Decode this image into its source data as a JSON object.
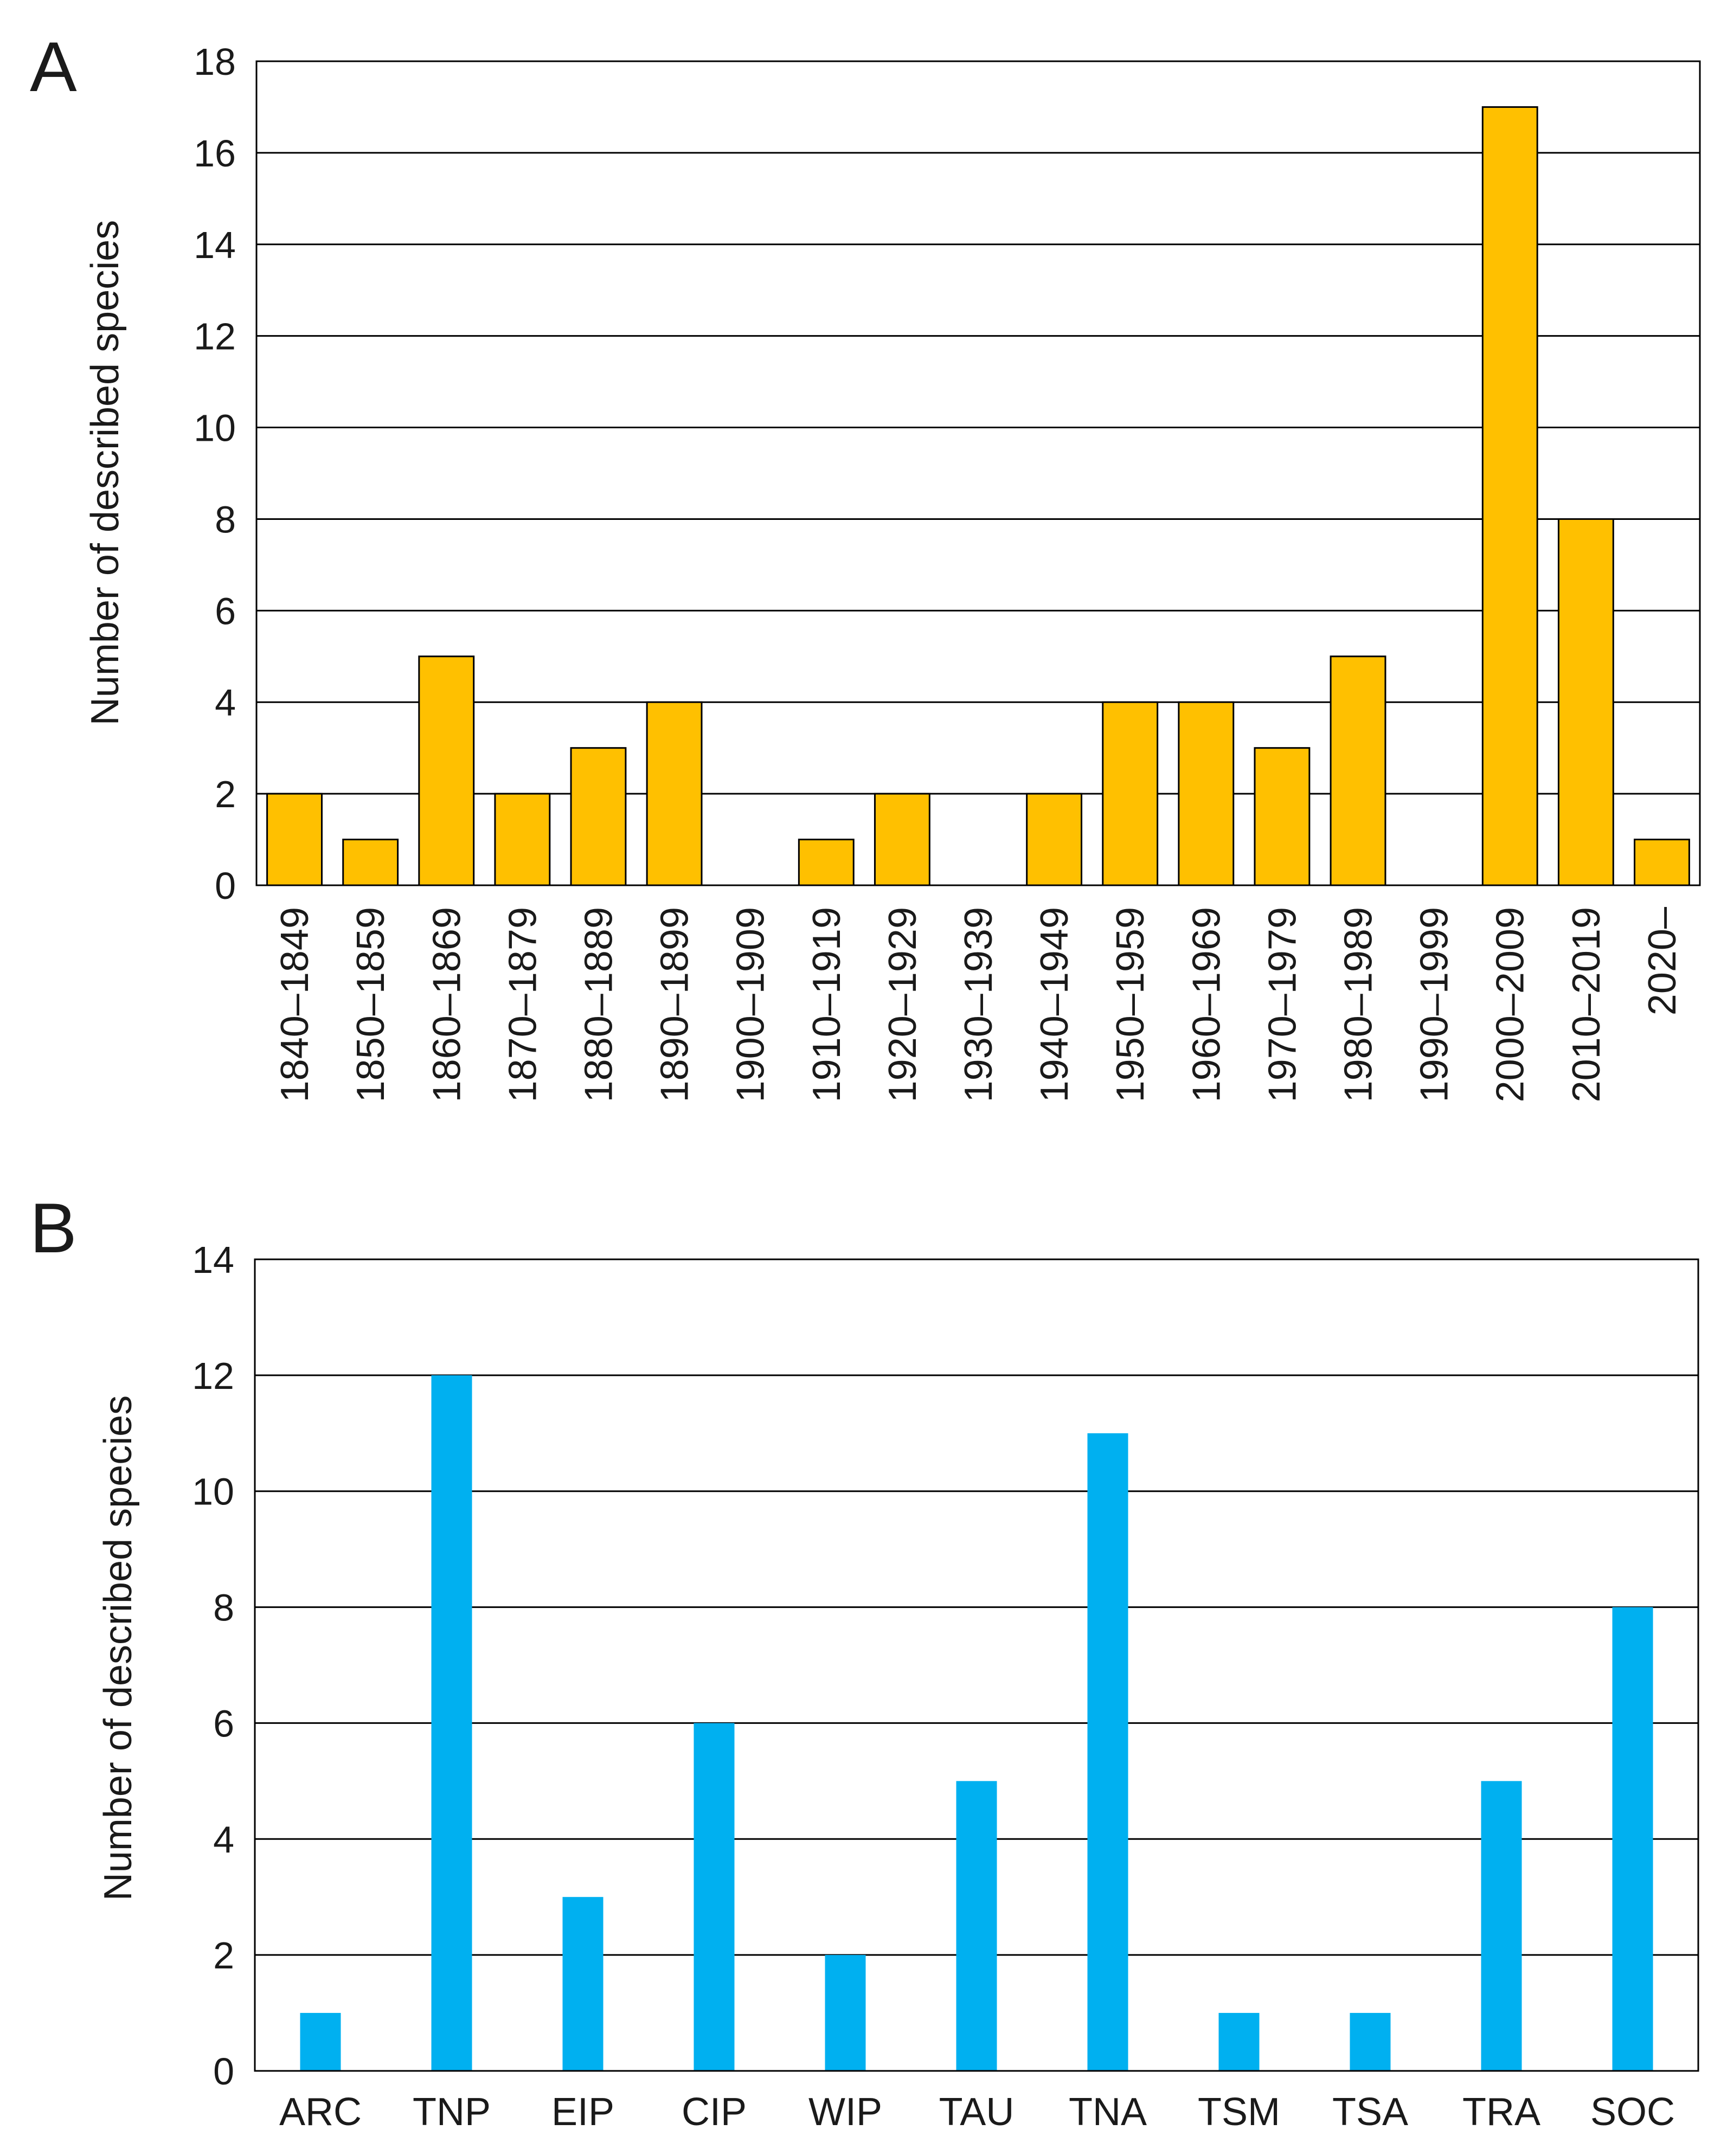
{
  "chart_data": [
    {
      "panel": "A",
      "type": "bar",
      "title": "",
      "xlabel": "",
      "ylabel": "Number of described species",
      "ylim": [
        0,
        18
      ],
      "yticks": [
        0,
        2,
        4,
        6,
        8,
        10,
        12,
        14,
        16,
        18
      ],
      "grid": true,
      "bar_color": "#FFC000",
      "bar_outline": "#000000",
      "categories": [
        "1840–1849",
        "1850–1859",
        "1860–1869",
        "1870–1879",
        "1880–1889",
        "1890–1899",
        "1900–1909",
        "1910–1919",
        "1920–1929",
        "1930–1939",
        "1940–1949",
        "1950–1959",
        "1960–1969",
        "1970–1979",
        "1980–1989",
        "1990–1999",
        "2000–2009",
        "2010–2019",
        "2020–"
      ],
      "values": [
        2,
        1,
        5,
        2,
        3,
        4,
        0,
        1,
        2,
        0,
        2,
        4,
        4,
        3,
        5,
        0,
        17,
        8,
        1
      ]
    },
    {
      "panel": "B",
      "type": "bar",
      "title": "",
      "xlabel": "",
      "ylabel": "Number of described species",
      "ylim": [
        0,
        14
      ],
      "yticks": [
        0,
        2,
        4,
        6,
        8,
        10,
        12,
        14
      ],
      "grid": true,
      "bar_color": "#00B0F0",
      "bar_outline": "none",
      "categories": [
        "ARC",
        "TNP",
        "EIP",
        "CIP",
        "WIP",
        "TAU",
        "TNA",
        "TSM",
        "TSA",
        "TRA",
        "SOC"
      ],
      "values": [
        1,
        12,
        3,
        6,
        2,
        5,
        11,
        1,
        1,
        5,
        8
      ]
    }
  ]
}
